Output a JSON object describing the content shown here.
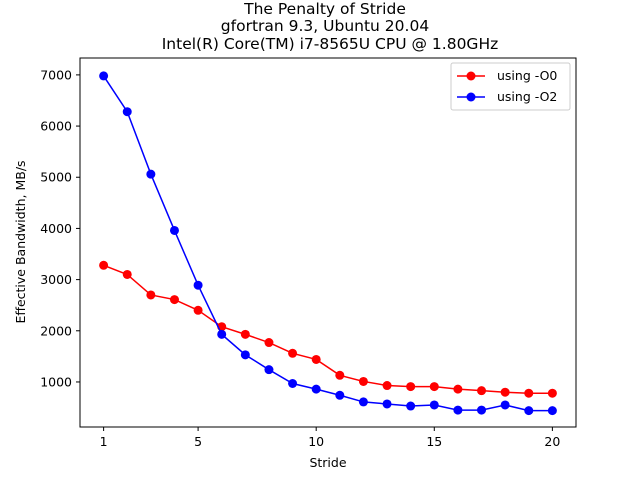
{
  "chart_data": {
    "type": "line",
    "title_lines": [
      "The Penalty of Stride",
      "gfortran 9.3, Ubuntu 20.04",
      "Intel(R) Core(TM) i7-8565U CPU @ 1.80GHz"
    ],
    "xlabel": "Stride",
    "ylabel": "Effective Bandwidth, MB/s",
    "xlim": [
      0.0,
      21.0
    ],
    "ylim": [
      120,
      7330
    ],
    "xticks": [
      1,
      5,
      10,
      15,
      20
    ],
    "yticks": [
      1000,
      2000,
      3000,
      4000,
      5000,
      6000,
      7000
    ],
    "grid": false,
    "legend_position": "upper right",
    "x": [
      1,
      2,
      3,
      4,
      5,
      6,
      7,
      8,
      9,
      10,
      11,
      12,
      13,
      14,
      15,
      16,
      17,
      18,
      19,
      20
    ],
    "series": [
      {
        "name": "using -O0",
        "color": "#ff0000",
        "values": [
          3280,
          3100,
          2700,
          2610,
          2400,
          2080,
          1930,
          1770,
          1560,
          1440,
          1130,
          1010,
          930,
          910,
          910,
          860,
          830,
          800,
          780,
          780
        ]
      },
      {
        "name": "using -O2",
        "color": "#0000ff",
        "values": [
          6980,
          6280,
          5060,
          3960,
          2890,
          1930,
          1530,
          1240,
          970,
          860,
          740,
          610,
          570,
          530,
          550,
          450,
          450,
          550,
          440,
          440
        ]
      }
    ]
  }
}
